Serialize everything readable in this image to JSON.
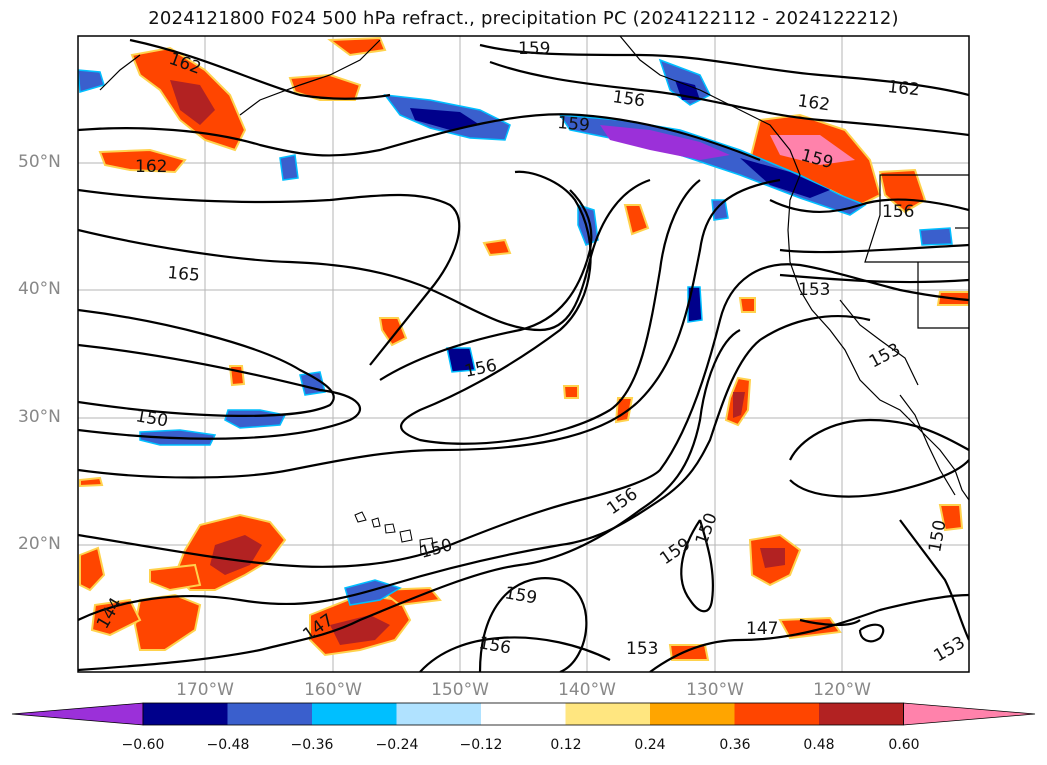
{
  "title": "2024121800 F024 500 hPa refract., precipitation PC (2024122112 - 2024122212)",
  "lat_labels": [
    "50°N",
    "40°N",
    "30°N",
    "20°N"
  ],
  "lon_labels": [
    "170°W",
    "160°W",
    "150°W",
    "140°W",
    "130°W",
    "120°W"
  ],
  "contour_labels": [
    {
      "text": "162",
      "key": "c1"
    },
    {
      "text": "159",
      "key": "c2"
    },
    {
      "text": "156",
      "key": "c3"
    },
    {
      "text": "159",
      "key": "c4"
    },
    {
      "text": "162",
      "key": "c5"
    },
    {
      "text": "162",
      "key": "c6"
    },
    {
      "text": "159",
      "key": "c7"
    },
    {
      "text": "162",
      "key": "c8"
    },
    {
      "text": "156",
      "key": "c9"
    },
    {
      "text": "165",
      "key": "c10"
    },
    {
      "text": "153",
      "key": "c11"
    },
    {
      "text": "156",
      "key": "c12"
    },
    {
      "text": "153",
      "key": "c13"
    },
    {
      "text": "150",
      "key": "c14"
    },
    {
      "text": "156",
      "key": "c15"
    },
    {
      "text": "150",
      "key": "c16"
    },
    {
      "text": "159",
      "key": "c17"
    },
    {
      "text": "150",
      "key": "c18"
    },
    {
      "text": "150",
      "key": "c19"
    },
    {
      "text": "144",
      "key": "c20"
    },
    {
      "text": "147",
      "key": "c21"
    },
    {
      "text": "159",
      "key": "c22"
    },
    {
      "text": "156",
      "key": "c23"
    },
    {
      "text": "153",
      "key": "c24"
    },
    {
      "text": "147",
      "key": "c25"
    },
    {
      "text": "153",
      "key": "c26"
    }
  ],
  "colorbar": {
    "ticks": [
      "−0.60",
      "−0.48",
      "−0.36",
      "−0.24",
      "−0.12",
      "0.12",
      "0.24",
      "0.36",
      "0.48",
      "0.60"
    ],
    "colors": [
      "#9b30d9",
      "#00008b",
      "#3a5fcd",
      "#00bfff",
      "#b0e2ff",
      "#ffffff",
      "#ffe680",
      "#ffa500",
      "#ff4500",
      "#b22222",
      "#ff82ab"
    ]
  }
}
